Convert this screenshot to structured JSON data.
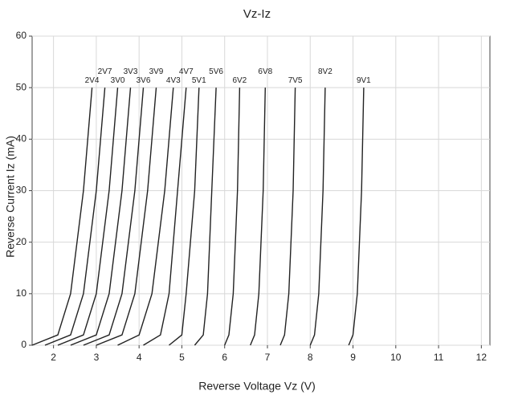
{
  "chart_data": {
    "type": "line",
    "title": "Vz-Iz",
    "xlabel": "Reverse Voltage Vz (V)",
    "ylabel": "Reverse Current Iz (mA)",
    "xlim": [
      1.5,
      12.2
    ],
    "xticks": [
      2,
      3,
      4,
      5,
      6,
      7,
      8,
      9,
      10,
      11,
      12
    ],
    "ylim": [
      0,
      60
    ],
    "yticks": [
      0,
      10,
      20,
      30,
      40,
      50,
      60
    ],
    "grid": true,
    "series": [
      {
        "name": "2V4",
        "color": "#222222",
        "x": [
          1.5,
          2.1,
          2.4,
          2.7,
          2.9
        ],
        "values": [
          0,
          2,
          10,
          30,
          50
        ]
      },
      {
        "name": "2V7",
        "color": "#222222",
        "x": [
          1.8,
          2.4,
          2.7,
          3.0,
          3.2
        ],
        "values": [
          0,
          2,
          10,
          30,
          50
        ]
      },
      {
        "name": "3V0",
        "color": "#222222",
        "x": [
          2.1,
          2.7,
          3.0,
          3.3,
          3.5
        ],
        "values": [
          0,
          2,
          10,
          30,
          50
        ]
      },
      {
        "name": "3V3",
        "color": "#222222",
        "x": [
          2.4,
          3.0,
          3.3,
          3.6,
          3.8
        ],
        "values": [
          0,
          2,
          10,
          30,
          50
        ]
      },
      {
        "name": "3V6",
        "color": "#222222",
        "x": [
          2.7,
          3.3,
          3.6,
          3.9,
          4.1
        ],
        "values": [
          0,
          2,
          10,
          30,
          50
        ]
      },
      {
        "name": "3V9",
        "color": "#222222",
        "x": [
          3.0,
          3.6,
          3.9,
          4.2,
          4.4
        ],
        "values": [
          0,
          2,
          10,
          30,
          50
        ]
      },
      {
        "name": "4V3",
        "color": "#222222",
        "x": [
          3.5,
          4.0,
          4.3,
          4.6,
          4.8
        ],
        "values": [
          0,
          2,
          10,
          30,
          50
        ]
      },
      {
        "name": "4V7",
        "color": "#222222",
        "x": [
          4.1,
          4.5,
          4.7,
          4.9,
          5.1
        ],
        "values": [
          0,
          2,
          10,
          30,
          50
        ]
      },
      {
        "name": "5V1",
        "color": "#222222",
        "x": [
          4.7,
          5.0,
          5.1,
          5.3,
          5.4
        ],
        "values": [
          0,
          2,
          10,
          30,
          50
        ]
      },
      {
        "name": "5V6",
        "color": "#222222",
        "x": [
          5.3,
          5.5,
          5.6,
          5.7,
          5.8
        ],
        "values": [
          0,
          2,
          10,
          30,
          50
        ]
      },
      {
        "name": "6V2",
        "color": "#222222",
        "x": [
          6.0,
          6.1,
          6.2,
          6.3,
          6.35
        ],
        "values": [
          0,
          2,
          10,
          30,
          50
        ]
      },
      {
        "name": "6V8",
        "color": "#222222",
        "x": [
          6.6,
          6.7,
          6.8,
          6.9,
          6.95
        ],
        "values": [
          0,
          2,
          10,
          30,
          50
        ]
      },
      {
        "name": "7V5",
        "color": "#222222",
        "x": [
          7.3,
          7.4,
          7.5,
          7.6,
          7.65
        ],
        "values": [
          0,
          2,
          10,
          30,
          50
        ]
      },
      {
        "name": "8V2",
        "color": "#222222",
        "x": [
          8.0,
          8.1,
          8.2,
          8.3,
          8.35
        ],
        "values": [
          0,
          2,
          10,
          30,
          50
        ]
      },
      {
        "name": "9V1",
        "color": "#222222",
        "x": [
          8.9,
          9.0,
          9.1,
          9.2,
          9.25
        ],
        "values": [
          0,
          2,
          10,
          30,
          50
        ]
      }
    ]
  }
}
